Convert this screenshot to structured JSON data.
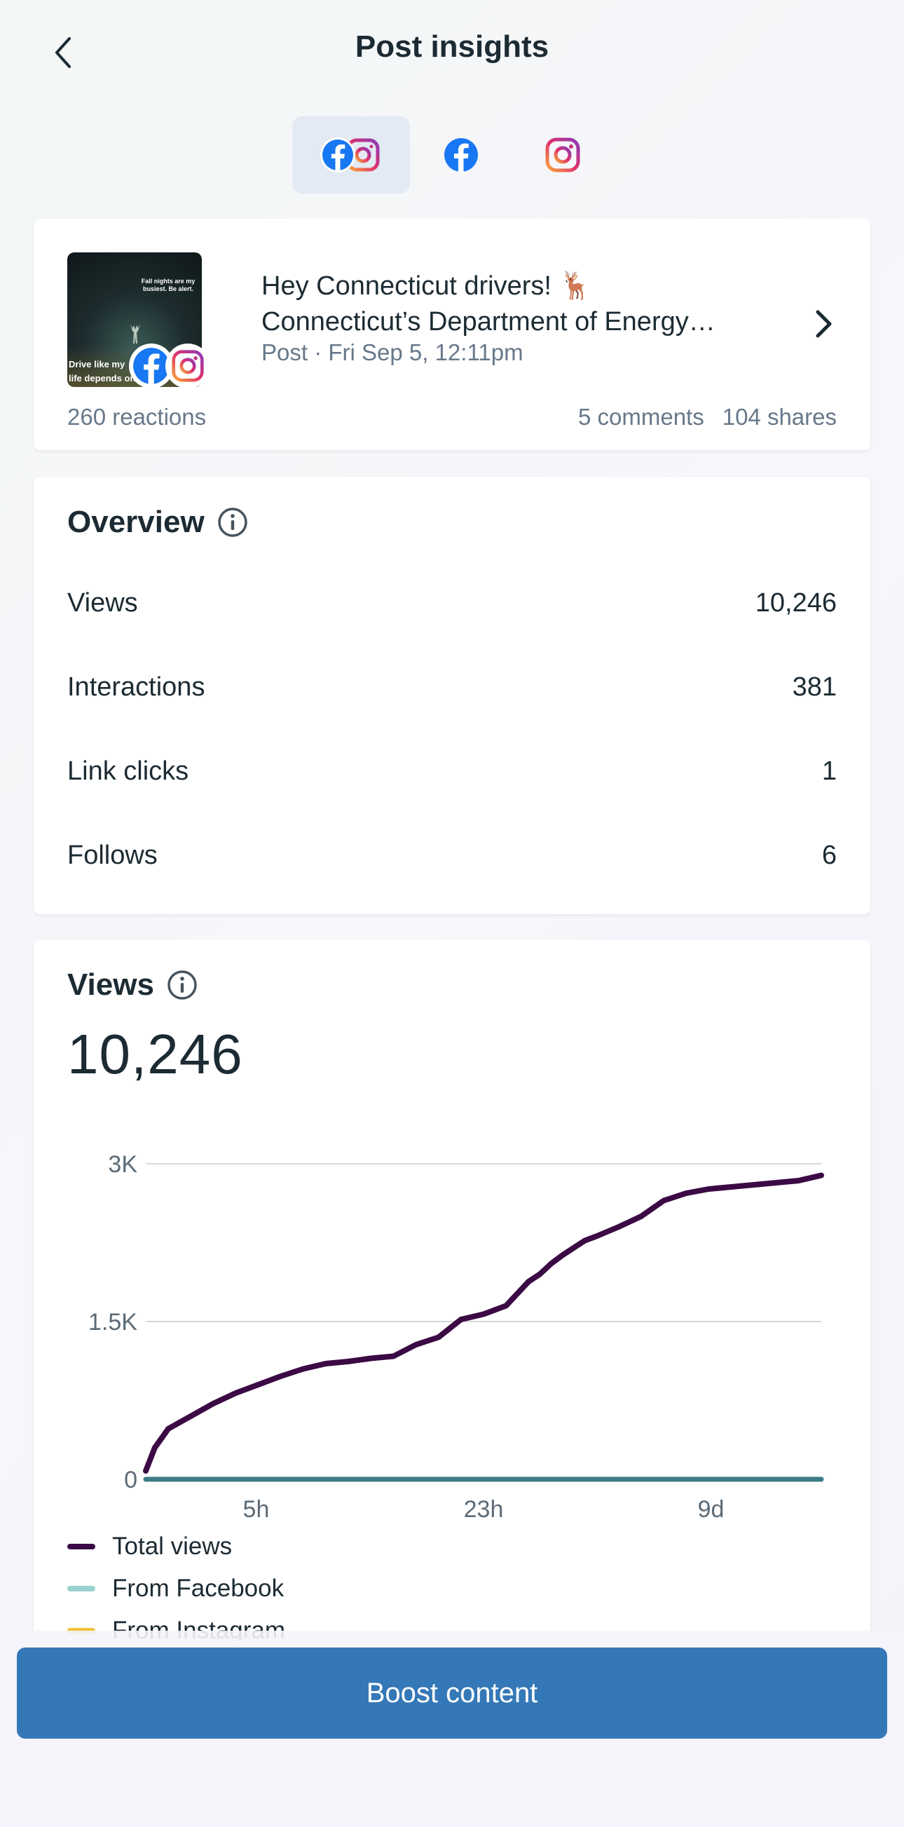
{
  "header": {
    "title": "Post insights",
    "back_icon": "chevron-left-icon"
  },
  "platform_tabs": [
    {
      "name": "facebook-instagram",
      "icon": "facebook-instagram-icon",
      "selected": true
    },
    {
      "name": "facebook",
      "icon": "facebook-icon",
      "selected": false
    },
    {
      "name": "instagram",
      "icon": "instagram-icon",
      "selected": false
    }
  ],
  "post": {
    "title": "Hey Connecticut drivers! 🦌",
    "description": "Connecticut’s Department of Energy…",
    "meta": "Post · Fri Sep 5, 12:11pm",
    "reactions": "260 reactions",
    "comments": "5 comments",
    "shares": "104 shares",
    "thumbnail_text_top": "Fall nights are my busiest. Be alert.",
    "thumbnail_text_bottom": "Drive like my life depends on it"
  },
  "overview": {
    "title": "Overview",
    "rows": [
      {
        "label": "Views",
        "value": "10,246"
      },
      {
        "label": "Interactions",
        "value": "381"
      },
      {
        "label": "Link clicks",
        "value": "1"
      },
      {
        "label": "Follows",
        "value": "6"
      }
    ]
  },
  "views": {
    "title": "Views",
    "total": "10,246"
  },
  "chart_data": {
    "type": "line",
    "title": "",
    "xlabel": "",
    "ylabel": "",
    "y_ticks": [
      "0",
      "1.5K",
      "3K"
    ],
    "x_ticks": [
      "5h",
      "23h",
      "9d"
    ],
    "ylim": [
      0,
      3000
    ],
    "xlim": [
      0,
      300
    ],
    "x_tick_positions": [
      49,
      150,
      251
    ],
    "grid": true,
    "legend_position": "bottom-left",
    "series": [
      {
        "name": "Total views",
        "color": "#3b0a45",
        "x": [
          0,
          4,
          10,
          20,
          30,
          40,
          50,
          60,
          70,
          80,
          90,
          100,
          110,
          120,
          130,
          140,
          150,
          160,
          170,
          175,
          180,
          185,
          190,
          195,
          200,
          210,
          220,
          230,
          240,
          250,
          260,
          270,
          280,
          290,
          300
        ],
        "y": [
          80,
          300,
          480,
          600,
          720,
          820,
          900,
          980,
          1050,
          1100,
          1120,
          1150,
          1170,
          1280,
          1350,
          1520,
          1570,
          1650,
          1880,
          1950,
          2050,
          2130,
          2200,
          2270,
          2310,
          2400,
          2500,
          2650,
          2720,
          2760,
          2780,
          2800,
          2820,
          2840,
          2890
        ]
      },
      {
        "name": "From Facebook",
        "color": "#3d7c84",
        "x": [
          0,
          300
        ],
        "y": [
          0,
          0
        ]
      }
    ]
  },
  "legend": [
    {
      "label": "Total views",
      "color": "#3b0a45"
    },
    {
      "label": "From Facebook",
      "color": "#9bd1cf"
    },
    {
      "label": "From Instagram",
      "color": "#f3c33b"
    }
  ],
  "footer": {
    "boost_label": "Boost content"
  }
}
